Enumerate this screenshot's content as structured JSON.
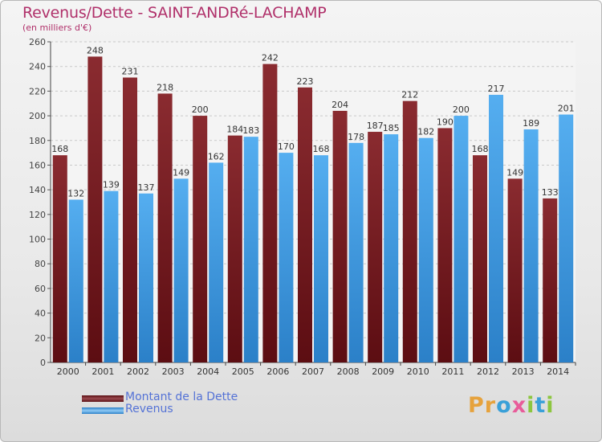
{
  "header": {
    "title": "Revenus/Dette - SAINT-ANDRé-LACHAMP",
    "subtitle": "(en milliers d'€)"
  },
  "legend": {
    "dette_label": "Montant de la Dette",
    "revenus_label": "Revenus"
  },
  "logo": {
    "text": "Proxiti",
    "icon": "proxiti-logo"
  },
  "colors": {
    "dette": "#7a1f24",
    "revenus": "#3d98dd",
    "title": "#b0306a",
    "legend_text": "#5472d6"
  },
  "chart_data": {
    "type": "bar",
    "title": "Revenus/Dette - SAINT-ANDRé-LACHAMP",
    "subtitle": "(en milliers d'€)",
    "categories": [
      "2000",
      "2001",
      "2002",
      "2003",
      "2004",
      "2005",
      "2006",
      "2007",
      "2008",
      "2009",
      "2010",
      "2011",
      "2012",
      "2013",
      "2014"
    ],
    "series": [
      {
        "name": "Montant de la Dette",
        "values": [
          168,
          248,
          231,
          218,
          200,
          184,
          242,
          223,
          204,
          187,
          212,
          190,
          168,
          149,
          133
        ]
      },
      {
        "name": "Revenus",
        "values": [
          132,
          139,
          137,
          149,
          162,
          183,
          170,
          168,
          178,
          185,
          182,
          200,
          217,
          189,
          201
        ]
      }
    ],
    "xlabel": "",
    "ylabel": "",
    "ylim": [
      0,
      260
    ],
    "yticks": [
      0,
      20,
      40,
      60,
      80,
      100,
      120,
      140,
      160,
      180,
      200,
      220,
      240,
      260
    ],
    "grid": "horizontal-dashed",
    "legend_position": "bottom-left"
  }
}
